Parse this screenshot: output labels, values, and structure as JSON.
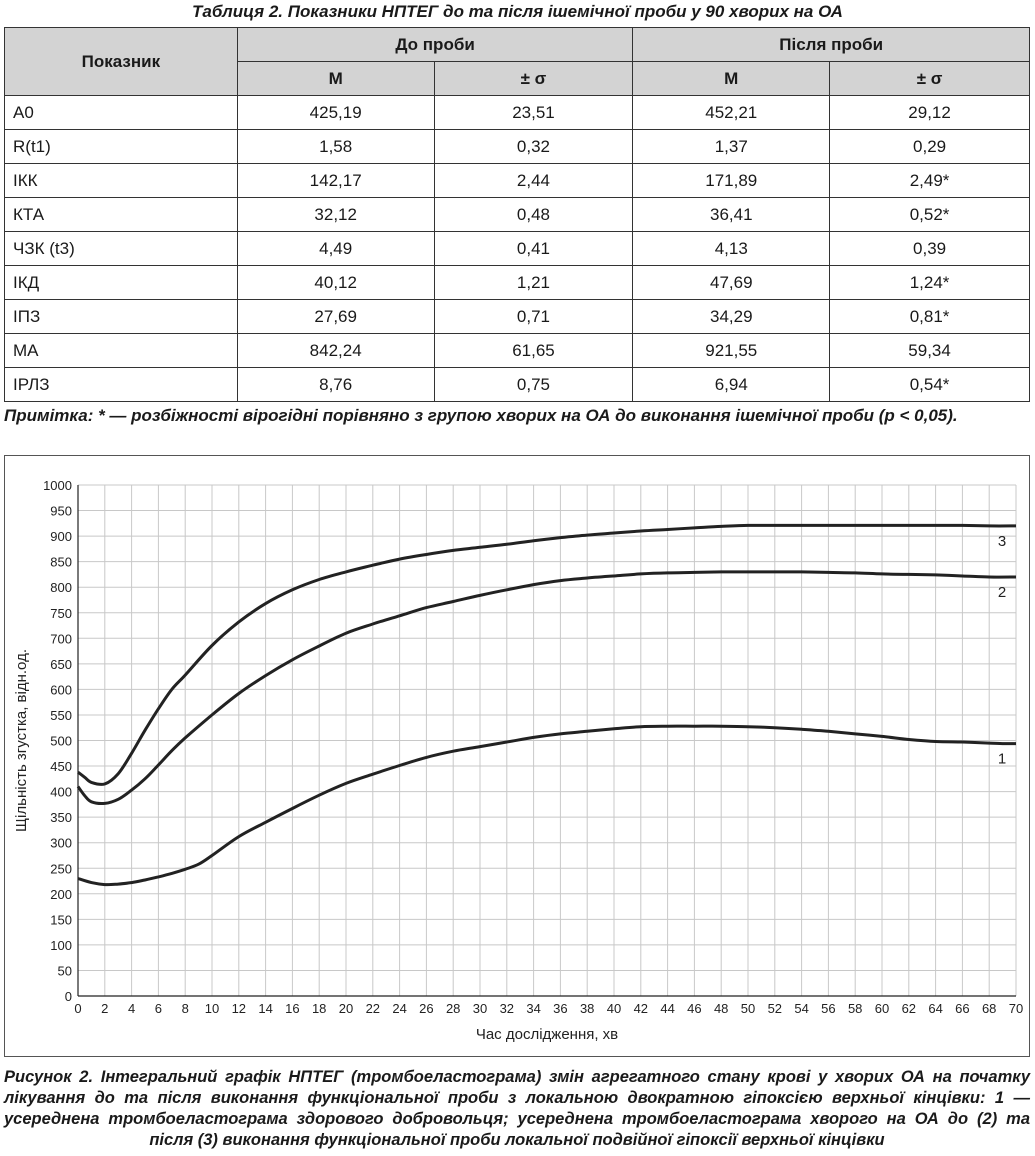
{
  "table": {
    "title": "Таблиця 2. Показники НПТЕГ до та після ішемічної проби у 90 хворих на ОА",
    "header": {
      "indicator": "Показник",
      "before": "До проби",
      "after": "Після проби",
      "m": "М",
      "sigma": "± σ"
    },
    "rows": [
      {
        "label": "А0",
        "m1": "425,19",
        "s1": "23,51",
        "m2": "452,21",
        "s2": "29,12"
      },
      {
        "label": "R(t1)",
        "m1": "1,58",
        "s1": "0,32",
        "m2": "1,37",
        "s2": "0,29"
      },
      {
        "label": "ІКК",
        "m1": "142,17",
        "s1": "2,44",
        "m2": "171,89",
        "s2": "2,49*"
      },
      {
        "label": "КТА",
        "m1": "32,12",
        "s1": "0,48",
        "m2": "36,41",
        "s2": "0,52*"
      },
      {
        "label": "ЧЗК (t3)",
        "m1": "4,49",
        "s1": "0,41",
        "m2": "4,13",
        "s2": "0,39"
      },
      {
        "label": "ІКД",
        "m1": "40,12",
        "s1": "1,21",
        "m2": "47,69",
        "s2": "1,24*"
      },
      {
        "label": "ІПЗ",
        "m1": "27,69",
        "s1": "0,71",
        "m2": "34,29",
        "s2": "0,81*"
      },
      {
        "label": "МА",
        "m1": "842,24",
        "s1": "61,65",
        "m2": "921,55",
        "s2": "59,34"
      },
      {
        "label": "ІРЛЗ",
        "m1": "8,76",
        "s1": "0,75",
        "m2": "6,94",
        "s2": "0,54*"
      }
    ],
    "note": "Примітка: * — розбіжності вірогідні порівняно з групою хворих на ОА до виконання ішемічної проби (р < 0,05)."
  },
  "chart_data": {
    "type": "line",
    "xlabel": "Час дослідження, хв",
    "ylabel": "Щільність згустка, відн.од.",
    "xlim": [
      0,
      70
    ],
    "ylim": [
      0,
      1000
    ],
    "x_ticks": [
      0,
      2,
      4,
      6,
      8,
      10,
      12,
      14,
      16,
      18,
      20,
      22,
      24,
      26,
      28,
      30,
      32,
      34,
      36,
      38,
      40,
      42,
      44,
      46,
      48,
      50,
      52,
      54,
      56,
      58,
      60,
      62,
      64,
      66,
      68,
      70
    ],
    "y_ticks": [
      0,
      50,
      100,
      150,
      200,
      250,
      300,
      350,
      400,
      450,
      500,
      550,
      600,
      650,
      700,
      750,
      800,
      850,
      900,
      950,
      1000
    ],
    "grid": "both",
    "series": [
      {
        "name": "1",
        "x": [
          0,
          1,
          2,
          3,
          4,
          5,
          6,
          7,
          8,
          9,
          10,
          12,
          14,
          16,
          18,
          20,
          22,
          24,
          26,
          28,
          30,
          32,
          34,
          36,
          38,
          40,
          42,
          44,
          46,
          48,
          50,
          52,
          54,
          56,
          58,
          60,
          62,
          64,
          66,
          68,
          69,
          70
        ],
        "y": [
          230,
          222,
          218,
          219,
          222,
          227,
          233,
          240,
          248,
          258,
          275,
          312,
          340,
          367,
          393,
          416,
          434,
          451,
          467,
          479,
          488,
          497,
          506,
          513,
          518,
          523,
          527,
          528,
          528,
          528,
          527,
          525,
          522,
          518,
          513,
          508,
          502,
          498,
          497,
          495,
          494,
          494
        ]
      },
      {
        "name": "2",
        "x": [
          0,
          0.5,
          1,
          2,
          3,
          4,
          5,
          6,
          7,
          8,
          10,
          12,
          14,
          16,
          18,
          20,
          22,
          24,
          26,
          28,
          30,
          32,
          34,
          36,
          38,
          40,
          42,
          44,
          46,
          48,
          50,
          52,
          54,
          56,
          58,
          60,
          62,
          64,
          66,
          68,
          70
        ],
        "y": [
          410,
          392,
          380,
          377,
          385,
          403,
          425,
          452,
          480,
          505,
          550,
          592,
          627,
          658,
          685,
          710,
          728,
          744,
          760,
          772,
          784,
          795,
          805,
          813,
          818,
          822,
          826,
          828,
          829,
          830,
          830,
          830,
          830,
          829,
          828,
          826,
          825,
          824,
          822,
          820,
          820
        ]
      },
      {
        "name": "3",
        "x": [
          0,
          0.5,
          1,
          2,
          3,
          4,
          5,
          6,
          7,
          8,
          10,
          12,
          14,
          16,
          18,
          20,
          22,
          24,
          26,
          28,
          30,
          32,
          34,
          36,
          38,
          40,
          42,
          44,
          46,
          48,
          50,
          52,
          54,
          56,
          58,
          60,
          62,
          64,
          66,
          68,
          70
        ],
        "y": [
          438,
          428,
          418,
          415,
          435,
          475,
          520,
          562,
          600,
          628,
          686,
          732,
          768,
          795,
          815,
          830,
          843,
          855,
          864,
          872,
          878,
          884,
          891,
          897,
          902,
          906,
          910,
          913,
          916,
          919,
          921,
          921,
          921,
          921,
          921,
          921,
          921,
          921,
          921,
          920,
          920
        ]
      }
    ]
  },
  "caption": "Рисунок 2. Інтегральний графік НПТЕГ (тромбоеластограма) змін агрегатного стану крові у хворих ОА на початку лікування до та після виконання функціональної проби з локальною двократною гіпоксією верхньої кінцівки: 1 — усереднена тромбоеластограма здорового добровольця; усереднена тромбоеластограма хворого на ОА до (2) та після (3) виконання функціональної проби локальної подвійної гіпоксії верхньої кінцівки"
}
